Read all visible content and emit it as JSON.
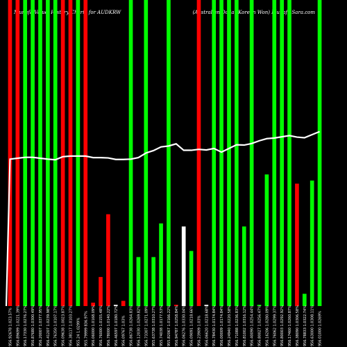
{
  "chart_data": {
    "type": "bar",
    "title": "Munafa Value, History Charts for AUDKRW",
    "subtitle": "(Australian Dollar Korean Won) Munafa Sara.com",
    "colors": {
      "up": "#00ff00",
      "down": "#ff0000",
      "neutral": "#ffffff",
      "line": "#ffffff",
      "background": "#000000"
    },
    "categories": [
      "956.92678 1.023.57%",
      "956.89699 1.0221.39%",
      "956.17330 1.0276.27%",
      "956.87680 1.0300.49%",
      "956.20007 1.0377.95%",
      "956.41207 1.0239.98%",
      "956.76350 1.0107.17%",
      "956.09638 1.0023.87%",
      "956.38117 1.0103.27%",
      "955.24 1.0299%",
      "955.79999 836.97%",
      "956.06000 1.0168.09%",
      "956.76000 1.0155.48%",
      "956.78000 1.0140.22%",
      "956.46597 1.0180.72%",
      "956.09767 1.03%",
      "956.86738 1.0264.83%",
      "956.12030 1.0269.82%",
      "956.73307 1.0271.09%",
      "955.63738 1.0310.27%",
      "955.74038 1.0177.53%",
      "955.82067 1.0166.22%",
      "956.94787 1.0258.84%",
      "956.06276 1.0330.04%",
      "956.09091 1.0218.66%",
      "956.23909 1.03%",
      "956.06620 1.0218.68%",
      "956.78430 1.0174.84%",
      "956.00009 1.0174.84%",
      "956.24940 1.0220.58%",
      "956.71088 1.0236.83%",
      "956.81002 1.0316.12%",
      "956.40090 1.0254.44%",
      "956.80027 1.0256.47%",
      "956.16206 1.0280.09%",
      "956.76062 1.0299.37%",
      "956.80003 1.0292.92%",
      "956.17460 1.0260.87%",
      "956.38090 1.0306.58%",
      "956.78833 1.0322.74%",
      "956.63000 1.0308.11%",
      "956.01000 1.0269%"
    ],
    "values": [
      100,
      100,
      100,
      100,
      100,
      100,
      100,
      100,
      100,
      100,
      100,
      1.1,
      9.5,
      30,
      0.4,
      1.7,
      100,
      16,
      100,
      16,
      27,
      100,
      0.4,
      26,
      18,
      100,
      0.4,
      100,
      100,
      100,
      100,
      26,
      100,
      0.4,
      43,
      100,
      100,
      100,
      40,
      4,
      41,
      100
    ],
    "directions": [
      "down",
      "down",
      "up",
      "up",
      "up",
      "up",
      "up",
      "down",
      "down",
      "up",
      "down",
      "down",
      "down",
      "down",
      "neutral",
      "down",
      "up",
      "up",
      "up",
      "up",
      "up",
      "up",
      "down",
      "neutral",
      "up",
      "down",
      "neutral",
      "up",
      "up",
      "up",
      "up",
      "up",
      "up",
      "up",
      "up",
      "up",
      "up",
      "up",
      "down",
      "up",
      "up",
      "up"
    ],
    "line": [
      48,
      48.3,
      48.6,
      48.6,
      48.3,
      48,
      47.8,
      48.8,
      49,
      49,
      49,
      48.5,
      48.5,
      48.4,
      47.9,
      47.9,
      48,
      48.5,
      50,
      50.8,
      52,
      52.3,
      53,
      50.9,
      50.9,
      51.2,
      51,
      51.5,
      50.3,
      51.5,
      52.7,
      52.6,
      53.1,
      54,
      54.7,
      54.9,
      55.3,
      55.7,
      55.2,
      55,
      56,
      57
    ],
    "ylim": [
      0,
      100
    ],
    "line_ylim": [
      0,
      100
    ],
    "legend": "none",
    "grid": false
  }
}
